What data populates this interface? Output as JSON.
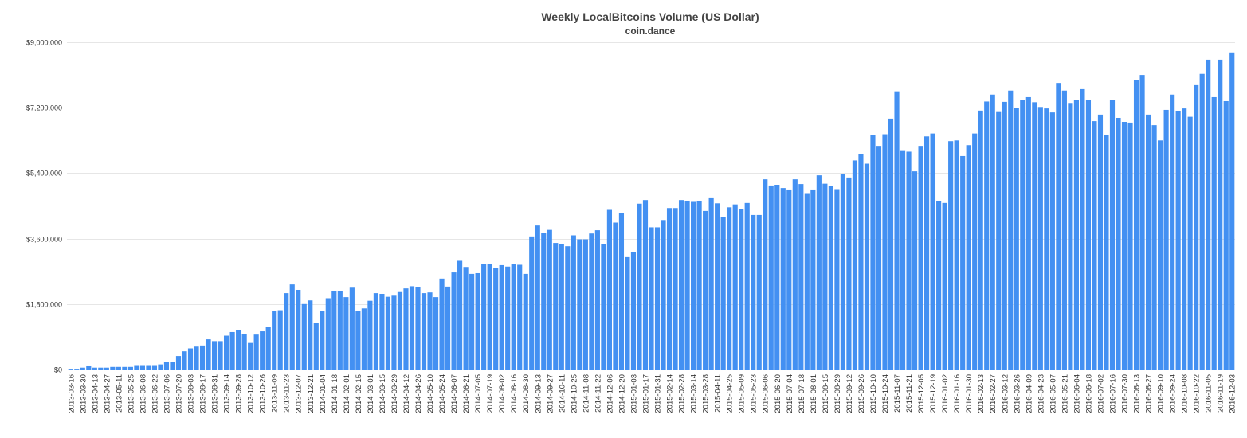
{
  "chart_data": {
    "type": "bar",
    "title": "Weekly LocalBitcoins Volume (US Dollar)",
    "subtitle": "coin.dance",
    "xlabel": "",
    "ylabel": "",
    "ylim": [
      0,
      9000000
    ],
    "y_ticks": [
      0,
      1800000,
      3600000,
      5400000,
      7200000,
      9000000
    ],
    "y_tick_labels": [
      "$0",
      "$1,800,000",
      "$3,600,000",
      "$5,400,000",
      "$7,200,000",
      "$9,000,000"
    ],
    "grid": true,
    "bar_color": "#4390f2",
    "x_tick_labels": [
      "2013-03-16",
      "2013-03-30",
      "2013-04-13",
      "2013-04-27",
      "2013-05-11",
      "2013-05-25",
      "2013-06-08",
      "2013-06-22",
      "2013-07-06",
      "2013-07-20",
      "2013-08-03",
      "2013-08-17",
      "2013-08-31",
      "2013-09-14",
      "2013-09-28",
      "2013-10-12",
      "2013-10-26",
      "2013-11-09",
      "2013-11-23",
      "2013-12-07",
      "2013-12-21",
      "2014-01-04",
      "2014-01-18",
      "2014-02-01",
      "2014-02-15",
      "2014-03-01",
      "2014-03-15",
      "2014-03-29",
      "2014-04-12",
      "2014-04-26",
      "2014-05-10",
      "2014-05-24",
      "2014-06-07",
      "2014-06-21",
      "2014-07-05",
      "2014-07-19",
      "2014-08-02",
      "2014-08-16",
      "2014-08-30",
      "2014-09-13",
      "2014-09-27",
      "2014-10-11",
      "2014-10-25",
      "2014-11-08",
      "2014-11-22",
      "2014-12-06",
      "2014-12-20",
      "2015-01-03",
      "2015-01-17",
      "2015-01-31",
      "2015-02-14",
      "2015-02-28",
      "2015-03-14",
      "2015-03-28",
      "2015-04-11",
      "2015-04-25",
      "2015-05-09",
      "2015-05-23",
      "2015-06-06",
      "2015-06-20",
      "2015-07-04",
      "2015-07-18",
      "2015-08-01",
      "2015-08-15",
      "2015-08-29",
      "2015-09-12",
      "2015-09-26",
      "2015-10-10",
      "2015-10-24",
      "2015-11-07",
      "2015-11-21",
      "2015-12-05",
      "2015-12-19",
      "2016-01-02",
      "2016-01-16",
      "2016-01-30",
      "2016-02-13",
      "2016-02-27",
      "2016-03-12",
      "2016-03-26",
      "2016-04-09",
      "2016-04-23",
      "2016-05-07",
      "2016-05-21",
      "2016-06-04",
      "2016-06-18",
      "2016-07-02",
      "2016-07-16",
      "2016-07-30",
      "2016-08-13",
      "2016-08-27",
      "2016-09-10",
      "2016-09-24",
      "2016-10-08",
      "2016-10-22",
      "2016-11-05",
      "2016-11-19",
      "2016-12-03"
    ],
    "values": [
      20000,
      20000,
      50000,
      110000,
      50000,
      50000,
      50000,
      70000,
      70000,
      70000,
      70000,
      120000,
      120000,
      120000,
      120000,
      140000,
      200000,
      200000,
      370000,
      500000,
      580000,
      630000,
      660000,
      830000,
      780000,
      780000,
      930000,
      1030000,
      1090000,
      980000,
      730000,
      960000,
      1050000,
      1180000,
      1620000,
      1630000,
      2100000,
      2340000,
      2190000,
      1800000,
      1900000,
      1270000,
      1600000,
      1960000,
      2150000,
      2150000,
      1990000,
      2250000,
      1600000,
      1680000,
      1890000,
      2100000,
      2080000,
      2000000,
      2030000,
      2130000,
      2230000,
      2290000,
      2270000,
      2100000,
      2120000,
      1990000,
      2500000,
      2280000,
      2670000,
      2990000,
      2820000,
      2630000,
      2650000,
      2910000,
      2900000,
      2800000,
      2870000,
      2830000,
      2890000,
      2880000,
      2630000,
      3660000,
      3960000,
      3760000,
      3840000,
      3480000,
      3440000,
      3390000,
      3690000,
      3580000,
      3580000,
      3740000,
      3830000,
      3440000,
      4390000,
      4040000,
      4310000,
      3090000,
      3230000,
      4560000,
      4660000,
      3910000,
      3910000,
      4110000,
      4440000,
      4440000,
      4660000,
      4640000,
      4610000,
      4640000,
      4360000,
      4710000,
      4570000,
      4200000,
      4460000,
      4540000,
      4420000,
      4580000,
      4250000,
      4250000,
      5230000,
      5060000,
      5080000,
      4990000,
      4950000,
      5230000,
      5100000,
      4850000,
      4950000,
      5340000,
      5110000,
      5040000,
      4960000,
      5370000,
      5280000,
      5750000,
      5930000,
      5660000,
      6440000,
      6150000,
      6470000,
      6900000,
      7650000,
      6030000,
      5990000,
      5450000,
      6150000,
      6410000,
      6490000,
      4640000,
      4580000,
      6280000,
      6300000,
      5870000,
      6170000,
      6490000,
      7120000,
      7370000,
      7560000,
      7080000,
      7360000,
      7670000,
      7190000,
      7420000,
      7490000,
      7350000,
      7220000,
      7180000,
      7070000,
      7880000,
      7670000,
      7330000,
      7420000,
      7710000,
      7420000,
      6830000,
      7010000,
      6460000,
      7420000,
      6920000,
      6810000,
      6790000,
      7960000,
      8100000,
      7010000,
      6720000,
      6300000,
      7140000,
      7560000,
      7100000,
      7180000,
      6950000,
      7820000,
      8130000,
      8520000,
      7490000,
      8520000,
      7380000,
      8720000
    ]
  }
}
